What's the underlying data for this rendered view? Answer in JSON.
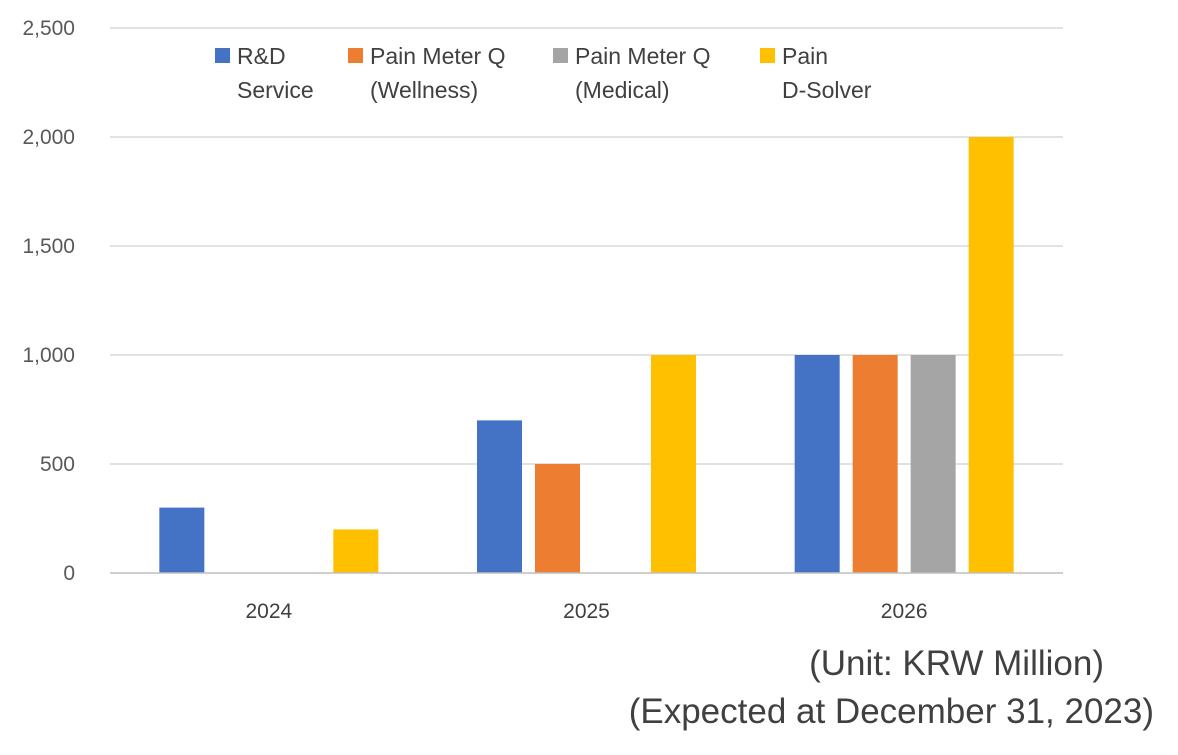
{
  "chart_data": {
    "type": "bar",
    "categories": [
      "2024",
      "2025",
      "2026"
    ],
    "series": [
      {
        "name": "R&D\nService",
        "color": "#4472C4",
        "values": [
          300,
          700,
          1000
        ]
      },
      {
        "name": "Pain Meter Q\n(Wellness)",
        "color": "#ED7D31",
        "values": [
          0,
          500,
          1000
        ]
      },
      {
        "name": "Pain Meter Q\n(Medical)",
        "color": "#A5A5A5",
        "values": [
          0,
          0,
          1000
        ]
      },
      {
        "name": "Pain\nD-Solver",
        "color": "#FFC000",
        "values": [
          200,
          1000,
          2000
        ]
      }
    ],
    "ylim": [
      0,
      2500
    ],
    "yticks": [
      0,
      500,
      1000,
      1500,
      2000,
      2500
    ],
    "ytick_labels": [
      "0",
      "500",
      "1,000",
      "1,500",
      "2,000",
      "2,500"
    ],
    "grid": true,
    "legend": "top"
  },
  "notes": {
    "unit": "(Unit: KRW Million)",
    "expected": "(Expected at December 31, 2023)"
  }
}
